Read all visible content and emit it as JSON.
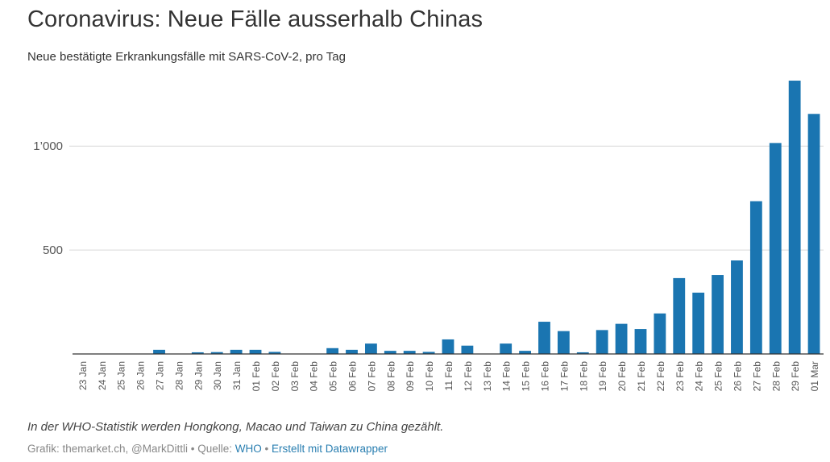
{
  "header": {
    "title": "Coronavirus: Neue Fälle ausserhalb Chinas",
    "subtitle": "Neue bestätigte Erkrankungsfälle mit SARS-CoV-2, pro Tag"
  },
  "footer": {
    "note": "In der WHO-Statistik werden Hongkong, Macao und Taiwan zu China gezählt.",
    "credit_prefix": "Grafik: themarket.ch, @MarkDittli • Quelle: ",
    "source_link": "WHO",
    "separator": " • ",
    "tool_link": "Erstellt mit Datawrapper"
  },
  "colors": {
    "bar": "#1a75b1",
    "grid": "#d9d9d9",
    "axis": "#333333",
    "tick_text": "#555555"
  },
  "chart_data": {
    "type": "bar",
    "title": "Coronavirus: Neue Fälle ausserhalb Chinas",
    "subtitle": "Neue bestätigte Erkrankungsfälle mit SARS-CoV-2, pro Tag",
    "xlabel": "",
    "ylabel": "",
    "ylim": [
      0,
      1350
    ],
    "yticks": [
      500,
      1000
    ],
    "ytick_labels": [
      "500",
      "1’000"
    ],
    "grid": true,
    "categories": [
      "23 Jan",
      "24 Jan",
      "25 Jan",
      "26 Jan",
      "27 Jan",
      "28 Jan",
      "29 Jan",
      "30 Jan",
      "31 Jan",
      "01 Feb",
      "02 Feb",
      "03 Feb",
      "04 Feb",
      "05 Feb",
      "06 Feb",
      "07 Feb",
      "08 Feb",
      "09 Feb",
      "10 Feb",
      "11 Feb",
      "12 Feb",
      "13 Feb",
      "14 Feb",
      "15 Feb",
      "16 Feb",
      "17 Feb",
      "18 Feb",
      "19 Feb",
      "20 Feb",
      "21 Feb",
      "22 Feb",
      "23 Feb",
      "24 Feb",
      "25 Feb",
      "26 Feb",
      "27 Feb",
      "28 Feb",
      "29 Feb",
      "01 Mar"
    ],
    "values": [
      0,
      0,
      0,
      0,
      20,
      0,
      8,
      9,
      20,
      20,
      10,
      0,
      0,
      28,
      20,
      50,
      15,
      15,
      10,
      70,
      40,
      0,
      50,
      15,
      155,
      110,
      8,
      115,
      145,
      120,
      195,
      365,
      295,
      380,
      450,
      735,
      1015,
      1315,
      1155
    ]
  }
}
